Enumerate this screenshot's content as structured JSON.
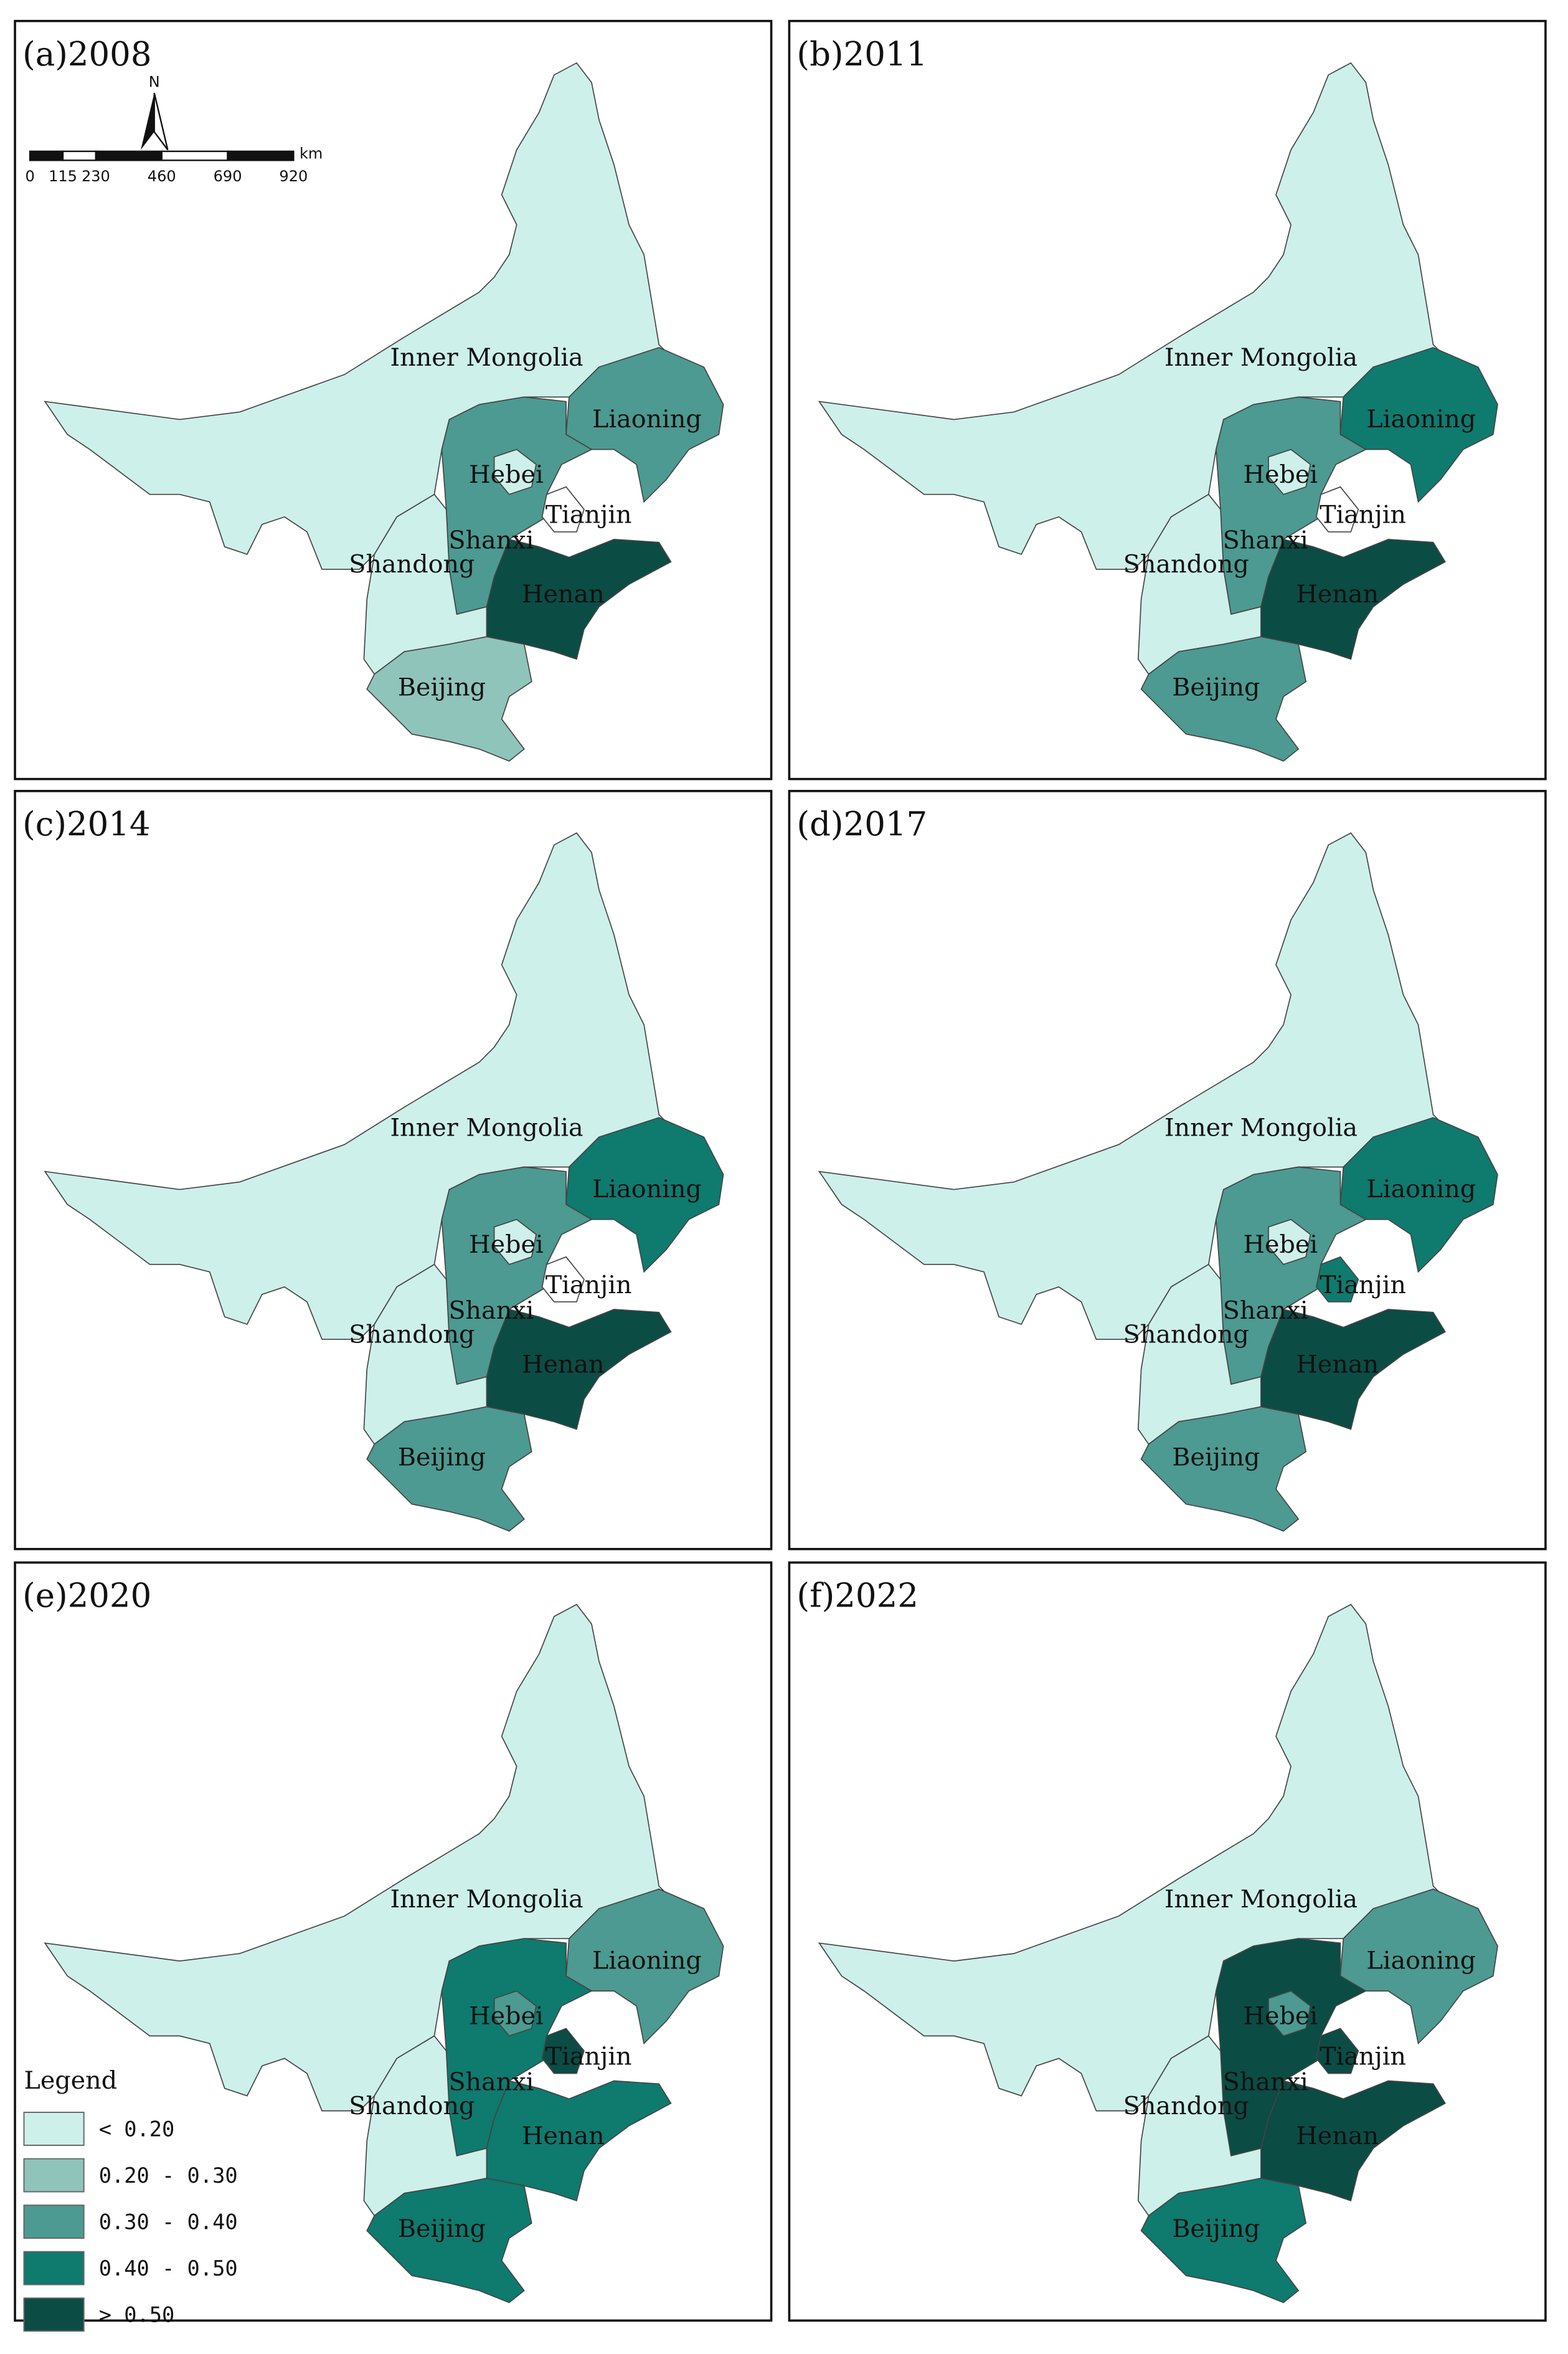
{
  "panels": [
    {
      "title": "(a)2008",
      "regions": [
        {
          "name": "Inner Mongolia",
          "color": "#cdf0ea"
        },
        {
          "name": "Liaoning",
          "color": "#4c9a91"
        },
        {
          "name": "Hebei",
          "color": "#4c9a91"
        },
        {
          "name": "Shanxi",
          "color": "#cdf0ea"
        },
        {
          "name": "Shandong",
          "color": "#0b4c45"
        },
        {
          "name": "Henan",
          "color": "#8fc4bb"
        },
        {
          "name": "Beijing",
          "color": "#cdf0ea"
        },
        {
          "name": "Tianjin",
          "color": "#ffffff"
        }
      ]
    },
    {
      "title": "(b)2011",
      "regions": [
        {
          "name": "Inner Mongolia",
          "color": "#cdf0ea"
        },
        {
          "name": "Liaoning",
          "color": "#0f7a6e"
        },
        {
          "name": "Hebei",
          "color": "#4c9a91"
        },
        {
          "name": "Shanxi",
          "color": "#cdf0ea"
        },
        {
          "name": "Shandong",
          "color": "#0b4c45"
        },
        {
          "name": "Henan",
          "color": "#4c9a91"
        },
        {
          "name": "Beijing",
          "color": "#cdf0ea"
        },
        {
          "name": "Tianjin",
          "color": "#ffffff"
        }
      ]
    },
    {
      "title": "(c)2014",
      "regions": [
        {
          "name": "Inner Mongolia",
          "color": "#cdf0ea"
        },
        {
          "name": "Liaoning",
          "color": "#0f7a6e"
        },
        {
          "name": "Hebei",
          "color": "#4c9a91"
        },
        {
          "name": "Shanxi",
          "color": "#cdf0ea"
        },
        {
          "name": "Shandong",
          "color": "#0b4c45"
        },
        {
          "name": "Henan",
          "color": "#4c9a91"
        },
        {
          "name": "Beijing",
          "color": "#cdf0ea"
        },
        {
          "name": "Tianjin",
          "color": "#ffffff"
        }
      ]
    },
    {
      "title": "(d)2017",
      "regions": [
        {
          "name": "Inner Mongolia",
          "color": "#cdf0ea"
        },
        {
          "name": "Liaoning",
          "color": "#0f7a6e"
        },
        {
          "name": "Hebei",
          "color": "#4c9a91"
        },
        {
          "name": "Shanxi",
          "color": "#cdf0ea"
        },
        {
          "name": "Shandong",
          "color": "#0b4c45"
        },
        {
          "name": "Henan",
          "color": "#4c9a91"
        },
        {
          "name": "Beijing",
          "color": "#cdf0ea"
        },
        {
          "name": "Tianjin",
          "color": "#0f7a6e"
        }
      ]
    },
    {
      "title": "(e)2020",
      "regions": [
        {
          "name": "Inner Mongolia",
          "color": "#cdf0ea"
        },
        {
          "name": "Liaoning",
          "color": "#4c9a91"
        },
        {
          "name": "Hebei",
          "color": "#0f7a6e"
        },
        {
          "name": "Shanxi",
          "color": "#cdf0ea"
        },
        {
          "name": "Shandong",
          "color": "#0f7a6e"
        },
        {
          "name": "Henan",
          "color": "#0f7a6e"
        },
        {
          "name": "Beijing",
          "color": "#4c9a91"
        },
        {
          "name": "Tianjin",
          "color": "#0b4c45"
        }
      ]
    },
    {
      "title": "(f)2022",
      "regions": [
        {
          "name": "Inner Mongolia",
          "color": "#cdf0ea"
        },
        {
          "name": "Liaoning",
          "color": "#4c9a91"
        },
        {
          "name": "Hebei",
          "color": "#0b4c45"
        },
        {
          "name": "Shanxi",
          "color": "#cdf0ea"
        },
        {
          "name": "Shandong",
          "color": "#0b4c45"
        },
        {
          "name": "Henan",
          "color": "#0f7a6e"
        },
        {
          "name": "Beijing",
          "color": "#4c9a91"
        },
        {
          "name": "Tianjin",
          "color": "#0b4c45"
        }
      ]
    }
  ],
  "legend": {
    "title": "Legend",
    "classes": [
      {
        "label": "< 0.20",
        "color": "#cdf0ea"
      },
      {
        "label": "0.20 - 0.30",
        "color": "#8fc4bb"
      },
      {
        "label": "0.30 - 0.40",
        "color": "#4c9a91"
      },
      {
        "label": "0.40 - 0.50",
        "color": "#0f7a6e"
      },
      {
        "label": "> 0.50",
        "color": "#0b4c45"
      }
    ]
  },
  "scale_bar": {
    "north": "N",
    "unit": "km",
    "ticks": [
      0,
      115,
      230,
      460,
      690,
      920
    ]
  }
}
